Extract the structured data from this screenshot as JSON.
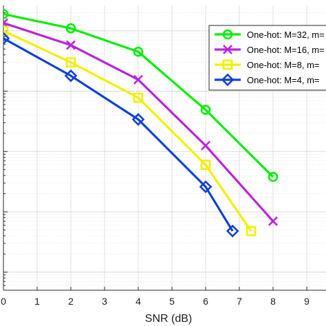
{
  "chart_data": {
    "type": "line",
    "title": "",
    "xlabel": "SNR (dB)",
    "ylabel": "",
    "xlim": [
      0,
      10
    ],
    "ylim_log10": [
      -5.3,
      -0.58
    ],
    "y_scale": "log",
    "x_ticks": [
      0,
      1,
      2,
      3,
      4,
      5,
      6,
      7,
      8,
      9
    ],
    "grid": true,
    "legend_position": "top-right",
    "series": [
      {
        "name": "One-hot: M=32, m=",
        "color": "#00ee00",
        "marker": "circle",
        "x": [
          0,
          2,
          4,
          6,
          8
        ],
        "y": [
          0.19,
          0.11,
          0.045,
          0.0049,
          0.00038
        ]
      },
      {
        "name": "One-hot: M=16, m=",
        "color": "#bb22dd",
        "marker": "x",
        "x": [
          0,
          2,
          4,
          6,
          8
        ],
        "y": [
          0.135,
          0.058,
          0.0155,
          0.00125,
          7e-05
        ]
      },
      {
        "name": "One-hot: M=8, m=",
        "color": "#f0f000",
        "marker": "square",
        "x": [
          0,
          2,
          4,
          6,
          7.35
        ],
        "y": [
          0.1,
          0.03,
          0.0078,
          0.0006,
          4.8e-05
        ]
      },
      {
        "name": "One-hot: M=4, m=",
        "color": "#1040d8",
        "marker": "diamond",
        "x": [
          0,
          2,
          4,
          6,
          6.8
        ],
        "y": [
          0.075,
          0.018,
          0.0034,
          0.00026,
          4.8e-05
        ]
      }
    ]
  }
}
